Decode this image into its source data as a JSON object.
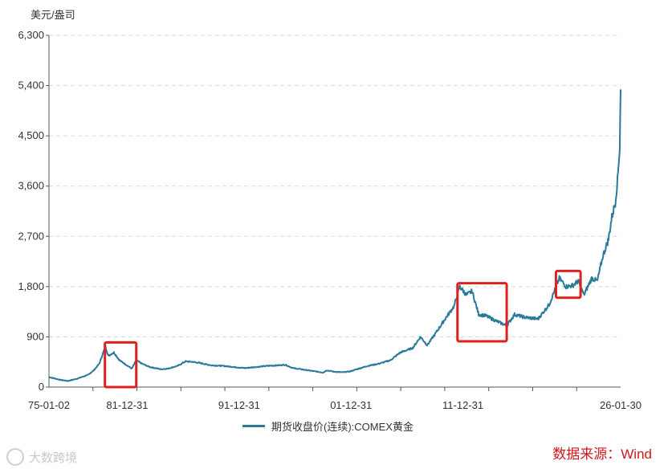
{
  "chart_data": {
    "type": "line",
    "ylabel": "美元/盎司",
    "ylim": [
      0,
      6300
    ],
    "yticks": [
      0,
      900,
      1800,
      2700,
      3600,
      4500,
      5400,
      6300
    ],
    "ytick_labels": [
      "0",
      "900",
      "1,800",
      "2,700",
      "3,600",
      "4,500",
      "5,400",
      "6,300"
    ],
    "xtick_labels": [
      "75-01-02",
      "81-12-31",
      "91-12-31",
      "01-12-31",
      "11-12-31",
      "26-01-30"
    ],
    "xtick_years": [
      1975.0,
      1981.99,
      1991.99,
      2001.99,
      2011.99,
      2026.08
    ],
    "xlim": [
      1975.0,
      2026.08
    ],
    "grid": true,
    "series": [
      {
        "name": "期货收盘价(连续):COMEX黄金",
        "color": "#2b7a9b",
        "x": [
          1975.0,
          1976.0,
          1976.7,
          1977.5,
          1978.5,
          1979.0,
          1979.5,
          1979.9,
          1980.05,
          1980.3,
          1980.8,
          1981.3,
          1981.9,
          1982.4,
          1982.8,
          1983.3,
          1984.0,
          1985.0,
          1985.6,
          1986.5,
          1987.2,
          1987.9,
          1988.5,
          1989.5,
          1990.5,
          1991.5,
          1992.5,
          1993.5,
          1994.5,
          1995.5,
          1996.1,
          1996.8,
          1997.5,
          1998.5,
          1999.5,
          1999.8,
          2000.5,
          2001.2,
          2001.9,
          2002.5,
          2003.5,
          2004.5,
          2005.5,
          2006.4,
          2007.5,
          2008.2,
          2008.8,
          2009.5,
          2010.5,
          2011.2,
          2011.7,
          2012.3,
          2012.8,
          2013.4,
          2014.0,
          2014.8,
          2015.9,
          2016.6,
          2017.5,
          2018.7,
          2019.7,
          2020.6,
          2021.2,
          2021.8,
          2022.3,
          2022.8,
          2023.5,
          2024.0,
          2024.5,
          2025.0,
          2025.3,
          2025.6,
          2025.8,
          2026.0,
          2026.08
        ],
        "values": [
          180,
          130,
          110,
          150,
          220,
          300,
          420,
          650,
          720,
          560,
          620,
          480,
          400,
          330,
          480,
          420,
          360,
          320,
          330,
          380,
          460,
          450,
          430,
          390,
          380,
          360,
          340,
          360,
          380,
          390,
          400,
          340,
          320,
          290,
          260,
          300,
          275,
          265,
          280,
          320,
          380,
          420,
          480,
          620,
          700,
          900,
          750,
          950,
          1250,
          1450,
          1800,
          1650,
          1720,
          1300,
          1280,
          1200,
          1100,
          1300,
          1250,
          1220,
          1480,
          1950,
          1800,
          1820,
          1900,
          1650,
          1950,
          1900,
          2350,
          2650,
          3050,
          3300,
          3700,
          4300,
          5330
        ]
      }
    ],
    "annotations": [
      {
        "type": "highlight-box",
        "x_range": [
          1980.0,
          1982.8
        ],
        "y_range": [
          0,
          800
        ]
      },
      {
        "type": "highlight-box",
        "x_range": [
          2011.5,
          2015.9
        ],
        "y_range": [
          820,
          1860
        ]
      },
      {
        "type": "highlight-box",
        "x_range": [
          2020.3,
          2022.5
        ],
        "y_range": [
          1600,
          2080
        ]
      }
    ]
  },
  "legend_label": "期货收盘价(连续):COMEX黄金",
  "source_text": "数据来源：Wind",
  "watermark_text": "大数跨境"
}
